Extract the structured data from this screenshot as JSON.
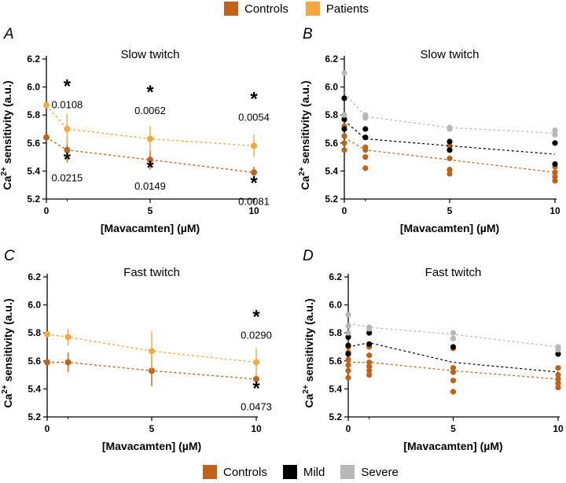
{
  "legend_top": [
    {
      "label": "Controls",
      "color": "#c0621a"
    },
    {
      "label": "Patients",
      "color": "#f5a742"
    }
  ],
  "legend_bottom": [
    {
      "label": "Controls",
      "color": "#c0621a"
    },
    {
      "label": "Mild",
      "color": "#000000"
    },
    {
      "label": "Severe",
      "color": "#b8b8b8"
    }
  ],
  "chart_data": [
    {
      "panel": "A",
      "type": "line",
      "title": "Slow twitch",
      "xlabel": "[Mavacamten] (µM)",
      "ylabel": "Ca2+ sensitivity (a.u.)",
      "x": [
        0,
        1,
        5,
        10
      ],
      "xlim": [
        0,
        10
      ],
      "ylim": [
        5.2,
        6.2
      ],
      "xticks": [
        0,
        5,
        10
      ],
      "yticks": [
        5.2,
        5.4,
        5.6,
        5.8,
        6.0,
        6.2
      ],
      "series": [
        {
          "name": "Controls",
          "color": "#c0621a",
          "values": [
            5.64,
            5.55,
            5.48,
            5.39
          ],
          "err": [
            0.0,
            0.09,
            0.07,
            0.04
          ]
        },
        {
          "name": "Patients",
          "color": "#f5a742",
          "values": [
            5.87,
            5.7,
            5.63,
            5.58
          ],
          "err": [
            0.0,
            0.11,
            0.09,
            0.08
          ]
        }
      ],
      "annotations": [
        {
          "x": 1,
          "y": 5.96,
          "star": true,
          "text": "0.0108"
        },
        {
          "x": 5,
          "y": 5.92,
          "star": true,
          "text": "0.0062"
        },
        {
          "x": 10,
          "y": 5.87,
          "star": true,
          "text": "0.0054"
        },
        {
          "x": 1,
          "y": 5.44,
          "star": true,
          "text": "0.0215"
        },
        {
          "x": 5,
          "y": 5.38,
          "star": true,
          "text": "0.0149"
        },
        {
          "x": 10,
          "y": 5.27,
          "star": true,
          "text": "0.0081"
        }
      ]
    },
    {
      "panel": "B",
      "type": "scatter",
      "title": "Slow twitch",
      "xlabel": "[Mavacamten] (µM)",
      "ylabel": "Ca2+ sensitivity (a.u.)",
      "x": [
        0,
        1,
        5,
        10
      ],
      "xlim": [
        0,
        10
      ],
      "ylim": [
        5.2,
        6.2
      ],
      "xticks": [
        0,
        5,
        10
      ],
      "yticks": [
        5.2,
        5.4,
        5.6,
        5.8,
        6.0,
        6.2
      ],
      "series": [
        {
          "name": "Controls",
          "color": "#c0621a",
          "trend": [
            5.64,
            5.55,
            5.48,
            5.39
          ],
          "points": [
            [
              0,
              5.72
            ],
            [
              0,
              5.65
            ],
            [
              0,
              5.6
            ],
            [
              0,
              5.55
            ],
            [
              1,
              5.64
            ],
            [
              1,
              5.57
            ],
            [
              1,
              5.55
            ],
            [
              1,
              5.5
            ],
            [
              1,
              5.42
            ],
            [
              5,
              5.58
            ],
            [
              5,
              5.49
            ],
            [
              5,
              5.41
            ],
            [
              5,
              5.38
            ],
            [
              10,
              5.43
            ],
            [
              10,
              5.39
            ],
            [
              10,
              5.36
            ],
            [
              10,
              5.33
            ]
          ]
        },
        {
          "name": "Mild",
          "color": "#000000",
          "trend": [
            5.76,
            5.63,
            5.58,
            5.52
          ],
          "points": [
            [
              0,
              5.92
            ],
            [
              0,
              5.77
            ],
            [
              0,
              5.7
            ],
            [
              1,
              5.7
            ],
            [
              1,
              5.64
            ],
            [
              5,
              5.61
            ],
            [
              5,
              5.55
            ],
            [
              10,
              5.6
            ],
            [
              10,
              5.45
            ]
          ]
        },
        {
          "name": "Severe",
          "color": "#b8b8b8",
          "trend": [
            5.96,
            5.79,
            5.71,
            5.67
          ],
          "points": [
            [
              0,
              6.1
            ],
            [
              0,
              5.8
            ],
            [
              1,
              5.8
            ],
            [
              1,
              5.78
            ],
            [
              5,
              5.71
            ],
            [
              5,
              5.7
            ],
            [
              10,
              5.69
            ],
            [
              10,
              5.66
            ]
          ]
        }
      ]
    },
    {
      "panel": "C",
      "type": "line",
      "title": "Fast twitch",
      "xlabel": "[Mavacamten] (µM)",
      "ylabel": "Ca2+ sensitivity (a.u.)",
      "x": [
        0,
        1,
        5,
        10
      ],
      "xlim": [
        0,
        10
      ],
      "ylim": [
        5.2,
        6.2
      ],
      "xticks": [
        0,
        5,
        10
      ],
      "yticks": [
        5.2,
        5.4,
        5.6,
        5.8,
        6.0,
        6.2
      ],
      "series": [
        {
          "name": "Controls",
          "color": "#c0621a",
          "values": [
            5.59,
            5.59,
            5.53,
            5.47
          ],
          "err": [
            0.0,
            0.07,
            0.11,
            0.03
          ]
        },
        {
          "name": "Patients",
          "color": "#f5a742",
          "values": [
            5.79,
            5.77,
            5.67,
            5.59
          ],
          "err": [
            0.0,
            0.06,
            0.14,
            0.1
          ]
        }
      ],
      "annotations": [
        {
          "x": 10,
          "y": 5.87,
          "star": true,
          "text": "0.0290"
        },
        {
          "x": 10,
          "y": 5.36,
          "star": true,
          "text": "0.0473"
        }
      ]
    },
    {
      "panel": "D",
      "type": "scatter",
      "title": "Fast twitch",
      "xlabel": "[Mavacamten] (µM)",
      "ylabel": "Ca2+ sensitivity (a.u.)",
      "x": [
        0,
        1,
        5,
        10
      ],
      "xlim": [
        0,
        10
      ],
      "ylim": [
        5.2,
        6.2
      ],
      "xticks": [
        0,
        5,
        10
      ],
      "yticks": [
        5.2,
        5.4,
        5.6,
        5.8,
        6.0,
        6.2
      ],
      "series": [
        {
          "name": "Controls",
          "color": "#c0621a",
          "trend": [
            5.59,
            5.59,
            5.53,
            5.47
          ],
          "points": [
            [
              0,
              5.7
            ],
            [
              0,
              5.66
            ],
            [
              0,
              5.61
            ],
            [
              0,
              5.57
            ],
            [
              0,
              5.53
            ],
            [
              0,
              5.48
            ],
            [
              1,
              5.7
            ],
            [
              1,
              5.64
            ],
            [
              1,
              5.59
            ],
            [
              1,
              5.56
            ],
            [
              1,
              5.53
            ],
            [
              1,
              5.5
            ],
            [
              5,
              5.69
            ],
            [
              5,
              5.55
            ],
            [
              5,
              5.52
            ],
            [
              5,
              5.46
            ],
            [
              5,
              5.38
            ],
            [
              10,
              5.55
            ],
            [
              10,
              5.5
            ],
            [
              10,
              5.47
            ],
            [
              10,
              5.44
            ],
            [
              10,
              5.41
            ]
          ]
        },
        {
          "name": "Mild",
          "color": "#000000",
          "trend": [
            5.7,
            5.73,
            5.59,
            5.52
          ],
          "points": [
            [
              0,
              5.77
            ],
            [
              0,
              5.71
            ],
            [
              0,
              5.65
            ],
            [
              1,
              5.8
            ],
            [
              1,
              5.72
            ],
            [
              5,
              5.7
            ],
            [
              10,
              5.65
            ]
          ]
        },
        {
          "name": "Severe",
          "color": "#b8b8b8",
          "trend": [
            5.87,
            5.84,
            5.79,
            5.7
          ],
          "points": [
            [
              0,
              5.93
            ],
            [
              0,
              5.85
            ],
            [
              0,
              5.8
            ],
            [
              1,
              5.84
            ],
            [
              1,
              5.83
            ],
            [
              5,
              5.8
            ],
            [
              5,
              5.76
            ],
            [
              10,
              5.7
            ],
            [
              10,
              5.68
            ]
          ]
        }
      ]
    }
  ]
}
